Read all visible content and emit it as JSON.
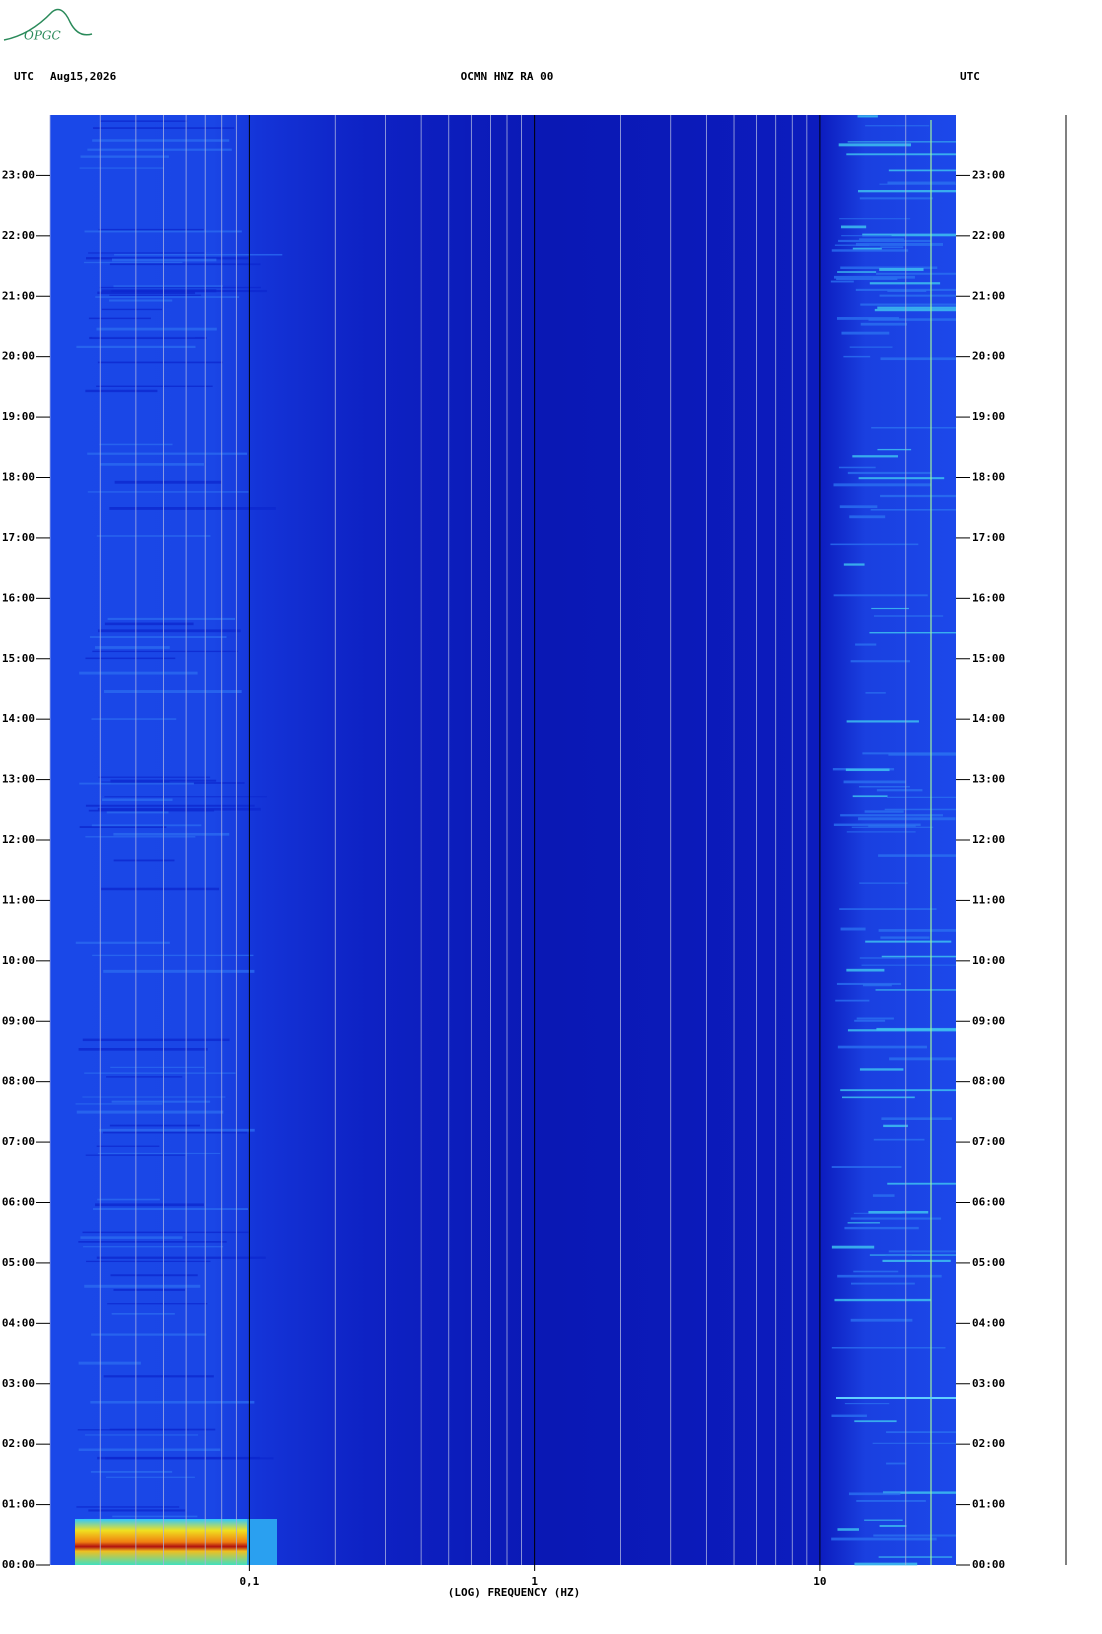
{
  "chart_data": {
    "type": "spectrogram",
    "logo": "OPGC",
    "left_label": "UTC",
    "date": "Aug15,2026",
    "title": "OCMN HNZ RA 00",
    "right_label": "UTC",
    "xlabel": "(LOG) FREQUENCY (HZ)",
    "log_x": true,
    "xlim": [
      0.02,
      30
    ],
    "xticks": [
      {
        "value": 0.1,
        "label": "0,1"
      },
      1,
      10
    ],
    "x_minor_grid": [
      0.02,
      0.03,
      0.04,
      0.05,
      0.06,
      0.07,
      0.08,
      0.09,
      0.2,
      0.3,
      0.4,
      0.5,
      0.6,
      0.7,
      0.8,
      0.9,
      2,
      3,
      4,
      5,
      6,
      7,
      8,
      9,
      20
    ],
    "ylim": [
      0,
      24
    ],
    "yticks": [
      {
        "value": 0,
        "label": "00:00"
      },
      {
        "value": 1,
        "label": "01:00"
      },
      {
        "value": 2,
        "label": "02:00"
      },
      {
        "value": 3,
        "label": "03:00"
      },
      {
        "value": 4,
        "label": "04:00"
      },
      {
        "value": 5,
        "label": "05:00"
      },
      {
        "value": 6,
        "label": "06:00"
      },
      {
        "value": 7,
        "label": "07:00"
      },
      {
        "value": 8,
        "label": "08:00"
      },
      {
        "value": 9,
        "label": "09:00"
      },
      {
        "value": 10,
        "label": "10:00"
      },
      {
        "value": 11,
        "label": "11:00"
      },
      {
        "value": 12,
        "label": "12:00"
      },
      {
        "value": 13,
        "label": "13:00"
      },
      {
        "value": 14,
        "label": "14:00"
      },
      {
        "value": 15,
        "label": "15:00"
      },
      {
        "value": 16,
        "label": "16:00"
      },
      {
        "value": 17,
        "label": "17:00"
      },
      {
        "value": 18,
        "label": "18:00"
      },
      {
        "value": 19,
        "label": "19:00"
      },
      {
        "value": 20,
        "label": "20:00"
      },
      {
        "value": 21,
        "label": "21:00"
      },
      {
        "value": 22,
        "label": "22:00"
      },
      {
        "value": 23,
        "label": "23:00"
      }
    ]
  }
}
